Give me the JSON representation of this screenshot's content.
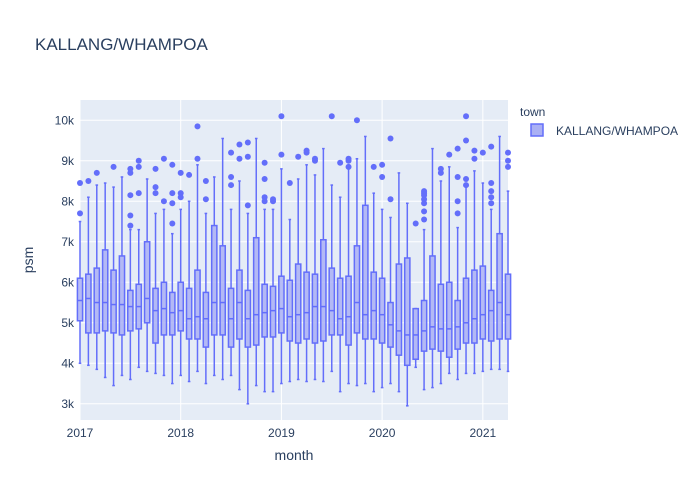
{
  "chart_data": {
    "type": "box",
    "title": "KALLANG/WHAMPOA",
    "xlabel": "month",
    "ylabel": "psm",
    "x_range": [
      "2017-01",
      "2021-04"
    ],
    "x_ticks": [
      "2017",
      "2018",
      "2019",
      "2020",
      "2021"
    ],
    "y_range": [
      2600,
      10500
    ],
    "y_ticks": [
      3000,
      4000,
      5000,
      6000,
      7000,
      8000,
      9000,
      10000
    ],
    "y_tick_labels": [
      "3k",
      "4k",
      "5k",
      "6k",
      "7k",
      "8k",
      "9k",
      "10k"
    ],
    "grid": true,
    "legend": {
      "title": "town",
      "placement": "right",
      "entries": [
        "KALLANG/WHAMPOA"
      ]
    },
    "colors": {
      "fill": "#aab0f4",
      "line": "#636efa",
      "plot_bg": "#e5ecf6",
      "grid": "#ffffff"
    },
    "series": [
      {
        "name": "KALLANG/WHAMPOA",
        "boxes": [
          {
            "x": "2017-01",
            "low": 4000,
            "q1": 5050,
            "median": 5550,
            "q3": 6100,
            "high": 7500,
            "outliers": [
              7700,
              8450
            ]
          },
          {
            "x": "2017-02",
            "low": 3950,
            "q1": 4750,
            "median": 5600,
            "q3": 6200,
            "high": 8100,
            "outliers": [
              8500
            ]
          },
          {
            "x": "2017-03",
            "low": 3850,
            "q1": 4750,
            "median": 5500,
            "q3": 6350,
            "high": 8400,
            "outliers": [
              8700
            ]
          },
          {
            "x": "2017-04",
            "low": 3650,
            "q1": 4800,
            "median": 5500,
            "q3": 6800,
            "high": 8450,
            "outliers": []
          },
          {
            "x": "2017-05",
            "low": 3450,
            "q1": 4750,
            "median": 5450,
            "q3": 6300,
            "high": 8350,
            "outliers": [
              8850
            ]
          },
          {
            "x": "2017-06",
            "low": 3700,
            "q1": 4700,
            "median": 5450,
            "q3": 6650,
            "high": 8600,
            "outliers": []
          },
          {
            "x": "2017-07",
            "low": 3600,
            "q1": 4800,
            "median": 5400,
            "q3": 5800,
            "high": 7300,
            "outliers": [
              7400,
              7650,
              8150,
              8700,
              8800
            ]
          },
          {
            "x": "2017-08",
            "low": 3900,
            "q1": 4850,
            "median": 5400,
            "q3": 5950,
            "high": 7300,
            "outliers": [
              8200,
              8850,
              9000
            ]
          },
          {
            "x": "2017-09",
            "low": 3800,
            "q1": 5000,
            "median": 5600,
            "q3": 7000,
            "high": 8550,
            "outliers": []
          },
          {
            "x": "2017-10",
            "low": 3750,
            "q1": 4500,
            "median": 5300,
            "q3": 5850,
            "high": 7700,
            "outliers": [
              8200,
              8350,
              8800
            ]
          },
          {
            "x": "2017-11",
            "low": 3700,
            "q1": 4700,
            "median": 5350,
            "q3": 6000,
            "high": 7800,
            "outliers": [
              8000,
              9050
            ]
          },
          {
            "x": "2017-12",
            "low": 3500,
            "q1": 4700,
            "median": 5250,
            "q3": 5750,
            "high": 7200,
            "outliers": [
              7450,
              7950,
              8200,
              8900
            ]
          },
          {
            "x": "2018-01",
            "low": 3700,
            "q1": 4800,
            "median": 5300,
            "q3": 6000,
            "high": 7800,
            "outliers": [
              8100,
              8200,
              8700
            ]
          },
          {
            "x": "2018-02",
            "low": 3550,
            "q1": 4600,
            "median": 5100,
            "q3": 5850,
            "high": 8000,
            "outliers": [
              8650
            ]
          },
          {
            "x": "2018-03",
            "low": 3800,
            "q1": 4600,
            "median": 5150,
            "q3": 6300,
            "high": 8900,
            "outliers": [
              9050,
              9850
            ]
          },
          {
            "x": "2018-04",
            "low": 3500,
            "q1": 4400,
            "median": 5100,
            "q3": 5750,
            "high": 7700,
            "outliers": [
              8050,
              8500
            ]
          },
          {
            "x": "2018-05",
            "low": 3700,
            "q1": 4700,
            "median": 5500,
            "q3": 7400,
            "high": 8600,
            "outliers": []
          },
          {
            "x": "2018-06",
            "low": 3600,
            "q1": 4700,
            "median": 5500,
            "q3": 6900,
            "high": 9550,
            "outliers": []
          },
          {
            "x": "2018-07",
            "low": 3700,
            "q1": 4400,
            "median": 5100,
            "q3": 5850,
            "high": 7800,
            "outliers": [
              8400,
              8600,
              9200
            ]
          },
          {
            "x": "2018-08",
            "low": 3350,
            "q1": 4600,
            "median": 5500,
            "q3": 6300,
            "high": 8500,
            "outliers": [
              9050,
              9400
            ]
          },
          {
            "x": "2018-09",
            "low": 3000,
            "q1": 4400,
            "median": 5100,
            "q3": 5800,
            "high": 7700,
            "outliers": [
              7900,
              9100,
              9450
            ]
          },
          {
            "x": "2018-10",
            "low": 3450,
            "q1": 4450,
            "median": 5200,
            "q3": 7100,
            "high": 9550,
            "outliers": []
          },
          {
            "x": "2018-11",
            "low": 3300,
            "q1": 4650,
            "median": 5250,
            "q3": 5950,
            "high": 7800,
            "outliers": [
              8000,
              8100,
              8550,
              8950
            ]
          },
          {
            "x": "2018-12",
            "low": 3300,
            "q1": 4650,
            "median": 5300,
            "q3": 5900,
            "high": 7800,
            "outliers": [
              8000,
              8050
            ]
          },
          {
            "x": "2019-01",
            "low": 3500,
            "q1": 4750,
            "median": 5350,
            "q3": 6150,
            "high": 8800,
            "outliers": [
              9150,
              10100
            ]
          },
          {
            "x": "2019-02",
            "low": 3550,
            "q1": 4550,
            "median": 5150,
            "q3": 6050,
            "high": 7550,
            "outliers": [
              8450
            ]
          },
          {
            "x": "2019-03",
            "low": 3600,
            "q1": 4500,
            "median": 5200,
            "q3": 6450,
            "high": 8550,
            "outliers": [
              9100
            ]
          },
          {
            "x": "2019-04",
            "low": 3550,
            "q1": 4600,
            "median": 5250,
            "q3": 6250,
            "high": 8900,
            "outliers": [
              9200,
              9250
            ]
          },
          {
            "x": "2019-05",
            "low": 3600,
            "q1": 4500,
            "median": 5400,
            "q3": 6200,
            "high": 8650,
            "outliers": [
              9000,
              9050
            ]
          },
          {
            "x": "2019-06",
            "low": 3550,
            "q1": 4550,
            "median": 5400,
            "q3": 7050,
            "high": 9300,
            "outliers": []
          },
          {
            "x": "2019-07",
            "low": 3800,
            "q1": 4700,
            "median": 5300,
            "q3": 6350,
            "high": 8400,
            "outliers": [
              10100
            ]
          },
          {
            "x": "2019-08",
            "low": 3300,
            "q1": 4700,
            "median": 5100,
            "q3": 6100,
            "high": 8100,
            "outliers": [
              8950
            ]
          },
          {
            "x": "2019-09",
            "low": 3500,
            "q1": 4450,
            "median": 5150,
            "q3": 6150,
            "high": 8800,
            "outliers": [
              9000,
              9050,
              8850
            ]
          },
          {
            "x": "2019-10",
            "low": 3450,
            "q1": 4750,
            "median": 5500,
            "q3": 6900,
            "high": 9050,
            "outliers": [
              10000
            ]
          },
          {
            "x": "2019-11",
            "low": 3500,
            "q1": 4600,
            "median": 5200,
            "q3": 7900,
            "high": 9600,
            "outliers": []
          },
          {
            "x": "2019-12",
            "low": 3300,
            "q1": 4600,
            "median": 5300,
            "q3": 6250,
            "high": 8200,
            "outliers": [
              8850
            ]
          },
          {
            "x": "2020-01",
            "low": 3400,
            "q1": 4500,
            "median": 5200,
            "q3": 6100,
            "high": 7800,
            "outliers": [
              8600,
              8900
            ]
          },
          {
            "x": "2020-02",
            "low": 3500,
            "q1": 4400,
            "median": 4950,
            "q3": 5500,
            "high": 7600,
            "outliers": [
              8050,
              9550
            ]
          },
          {
            "x": "2020-03",
            "low": 3300,
            "q1": 4200,
            "median": 4800,
            "q3": 6450,
            "high": 8700,
            "outliers": []
          },
          {
            "x": "2020-04",
            "low": 2950,
            "q1": 3950,
            "median": 4700,
            "q3": 6600,
            "high": 7950,
            "outliers": []
          },
          {
            "x": "2020-05",
            "low": 3900,
            "q1": 4100,
            "median": 4700,
            "q3": 5350,
            "high": 5350,
            "outliers": [
              7450
            ]
          },
          {
            "x": "2020-06",
            "low": 3350,
            "q1": 4300,
            "median": 4800,
            "q3": 5550,
            "high": 7300,
            "outliers": [
              7550,
              7750,
              7950,
              8050,
              8150,
              8200,
              8250
            ]
          },
          {
            "x": "2020-07",
            "low": 3400,
            "q1": 4350,
            "median": 4900,
            "q3": 6650,
            "high": 9300,
            "outliers": []
          },
          {
            "x": "2020-08",
            "low": 3500,
            "q1": 4300,
            "median": 4850,
            "q3": 5950,
            "high": 8500,
            "outliers": [
              8700,
              8800
            ]
          },
          {
            "x": "2020-09",
            "low": 3750,
            "q1": 4150,
            "median": 4850,
            "q3": 6000,
            "high": 8850,
            "outliers": [
              9150
            ]
          },
          {
            "x": "2020-10",
            "low": 3600,
            "q1": 4350,
            "median": 4900,
            "q3": 5550,
            "high": 7350,
            "outliers": [
              7700,
              8000,
              8600,
              9300
            ]
          },
          {
            "x": "2020-11",
            "low": 3750,
            "q1": 4500,
            "median": 5000,
            "q3": 6100,
            "high": 8350,
            "outliers": [
              8400,
              8550,
              9500,
              10100
            ]
          },
          {
            "x": "2020-12",
            "low": 3750,
            "q1": 4500,
            "median": 5100,
            "q3": 6300,
            "high": 8750,
            "outliers": [
              9050,
              9250
            ]
          },
          {
            "x": "2021-01",
            "low": 3800,
            "q1": 4600,
            "median": 5200,
            "q3": 6400,
            "high": 8450,
            "outliers": [
              9200
            ]
          },
          {
            "x": "2021-02",
            "low": 3850,
            "q1": 4550,
            "median": 5300,
            "q3": 5800,
            "high": 7800,
            "outliers": [
              7950,
              8100,
              8250,
              8450,
              9350
            ]
          },
          {
            "x": "2021-03",
            "low": 3850,
            "q1": 4600,
            "median": 5500,
            "q3": 7200,
            "high": 9600,
            "outliers": []
          },
          {
            "x": "2021-04",
            "low": 3800,
            "q1": 4600,
            "median": 5200,
            "q3": 6200,
            "high": 8250,
            "outliers": [
              8850,
              9000,
              9200
            ]
          }
        ]
      }
    ]
  }
}
